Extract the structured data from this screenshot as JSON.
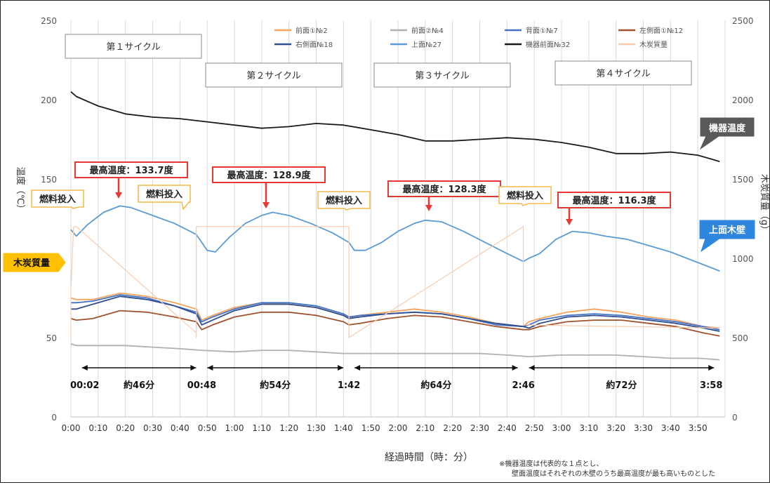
{
  "chart_data": {
    "type": "line",
    "xlabel": "経過時間（時：分）",
    "ylabel_left": "温度（℃）",
    "ylabel_right": "木炭質量（g）",
    "ylim_left": [
      0,
      250
    ],
    "ylim_right": [
      0,
      2500
    ],
    "y_ticks_left": [
      "0",
      "50",
      "100",
      "150",
      "200",
      "250"
    ],
    "y_ticks_right": [
      "0",
      "500",
      "1000",
      "1500",
      "2000",
      "2500"
    ],
    "x_range_min": [
      0,
      240
    ],
    "x_ticks": [
      "0:00",
      "0:10",
      "0:20",
      "0:30",
      "0:40",
      "0:50",
      "1:00",
      "1:10",
      "1:20",
      "1:30",
      "1:40",
      "1:50",
      "2:00",
      "2:10",
      "2:20",
      "2:30",
      "2:40",
      "2:50",
      "3:00",
      "3:10",
      "3:20",
      "3:30",
      "3:40",
      "3:50"
    ],
    "grid": "vertical-only",
    "legend_position": "top-right",
    "legend": [
      "前面①№2",
      "前面②№4",
      "背面①№7",
      "左側面①№12",
      "右側面№18",
      "上面№27",
      "機器前面№32",
      "木炭質量"
    ],
    "series": [
      {
        "name": "前面①№2",
        "color": "#f4a460",
        "axis": "left",
        "x": [
          0,
          2,
          8,
          18,
          28,
          38,
          46,
          48,
          52,
          60,
          70,
          80,
          90,
          100,
          102,
          106,
          116,
          126,
          136,
          146,
          156,
          166,
          168,
          172,
          182,
          192,
          202,
          212,
          222,
          232,
          238
        ],
        "y": [
          75,
          74,
          74,
          78,
          76,
          72,
          68,
          61,
          64,
          69,
          72,
          71,
          69,
          64,
          62,
          64,
          66,
          68,
          66,
          63,
          59,
          57,
          60,
          62,
          66,
          68,
          66,
          63,
          61,
          57,
          56
        ]
      },
      {
        "name": "前面②№4",
        "color": "#b0b0b0",
        "axis": "left",
        "x": [
          0,
          2,
          10,
          20,
          30,
          40,
          48,
          60,
          70,
          80,
          90,
          100,
          110,
          120,
          130,
          140,
          150,
          160,
          168,
          180,
          190,
          200,
          210,
          220,
          230,
          238
        ],
        "y": [
          46,
          45,
          45,
          45,
          44,
          43,
          42,
          41,
          42,
          42,
          41,
          40,
          40,
          40,
          40,
          40,
          40,
          39,
          38,
          39,
          39,
          39,
          38,
          37,
          37,
          36
        ]
      },
      {
        "name": "背面①№7",
        "color": "#4472c4",
        "axis": "left",
        "x": [
          0,
          2,
          8,
          18,
          28,
          38,
          46,
          48,
          52,
          60,
          70,
          80,
          90,
          100,
          102,
          106,
          116,
          126,
          136,
          146,
          156,
          166,
          168,
          172,
          182,
          192,
          202,
          212,
          222,
          232,
          238
        ],
        "y": [
          72,
          72,
          73,
          77,
          75,
          70,
          66,
          60,
          63,
          68,
          72,
          72,
          70,
          65,
          63,
          64,
          65,
          66,
          65,
          62,
          58,
          57,
          58,
          61,
          64,
          65,
          64,
          62,
          60,
          57,
          55
        ]
      },
      {
        "name": "左側面①№12",
        "color": "#a0522d",
        "axis": "left",
        "x": [
          0,
          2,
          8,
          18,
          28,
          38,
          46,
          48,
          52,
          60,
          70,
          80,
          90,
          100,
          102,
          106,
          116,
          126,
          136,
          146,
          156,
          166,
          168,
          172,
          182,
          192,
          202,
          212,
          222,
          232,
          238
        ],
        "y": [
          62,
          61,
          62,
          67,
          66,
          63,
          60,
          55,
          58,
          63,
          66,
          66,
          64,
          60,
          58,
          59,
          62,
          64,
          63,
          60,
          57,
          55,
          55,
          57,
          60,
          61,
          61,
          59,
          57,
          53,
          51
        ]
      },
      {
        "name": "右側面№18",
        "color": "#2f4f8f",
        "axis": "left",
        "x": [
          0,
          2,
          8,
          18,
          28,
          38,
          46,
          48,
          52,
          60,
          70,
          80,
          90,
          100,
          102,
          106,
          116,
          126,
          136,
          146,
          156,
          166,
          168,
          172,
          182,
          192,
          202,
          212,
          222,
          232,
          238
        ],
        "y": [
          68,
          68,
          71,
          76,
          74,
          70,
          65,
          58,
          61,
          67,
          71,
          71,
          69,
          64,
          62,
          63,
          65,
          66,
          65,
          62,
          59,
          57,
          56,
          59,
          63,
          64,
          63,
          61,
          59,
          56,
          54
        ]
      },
      {
        "name": "上面№27",
        "color": "#5b9bd5",
        "axis": "left",
        "x": [
          0,
          2,
          6,
          12,
          18,
          22,
          30,
          38,
          46,
          48,
          50,
          53,
          58,
          64,
          70,
          74,
          80,
          88,
          96,
          102,
          104,
          108,
          114,
          120,
          126,
          130,
          136,
          144,
          152,
          160,
          166,
          168,
          172,
          178,
          184,
          190,
          196,
          204,
          212,
          220,
          226,
          232,
          238
        ],
        "y": [
          118,
          114,
          121,
          129,
          133,
          132,
          127,
          122,
          115,
          110,
          105,
          104,
          113,
          122,
          127,
          129,
          127,
          122,
          116,
          110,
          105,
          105,
          110,
          117,
          122,
          124,
          123,
          117,
          110,
          103,
          98,
          100,
          103,
          112,
          117,
          116,
          114,
          112,
          108,
          104,
          100,
          96,
          92
        ]
      },
      {
        "name": "機器前面№32",
        "color": "#1a1a1a",
        "axis": "left",
        "x": [
          0,
          2,
          10,
          20,
          30,
          40,
          50,
          60,
          70,
          80,
          90,
          100,
          110,
          120,
          130,
          140,
          150,
          160,
          170,
          180,
          190,
          200,
          210,
          220,
          230,
          238
        ],
        "y": [
          205,
          202,
          196,
          191,
          189,
          188,
          186,
          184,
          182,
          183,
          185,
          184,
          181,
          178,
          174,
          174,
          175,
          176,
          175,
          173,
          170,
          166,
          166,
          167,
          165,
          161
        ]
      },
      {
        "name": "木炭質量",
        "color": "#f8cbad",
        "axis": "right",
        "x": [
          0,
          0,
          1,
          2,
          46,
          46,
          46,
          102,
          102,
          102,
          166,
          166,
          166,
          238
        ],
        "y": [
          500,
          800,
          1200,
          1200,
          530,
          500,
          1200,
          1200,
          530,
          500,
          1200,
          1200,
          580,
          560
        ]
      }
    ],
    "cycles": [
      {
        "label": "第１サイクル"
      },
      {
        "label": "第２サイクル"
      },
      {
        "label": "第３サイクル"
      },
      {
        "label": "第４サイクル"
      }
    ],
    "max_temp_labels": [
      "最高温度：133.7度",
      "最高温度：128.9度",
      "最高温度：128.3度",
      "最高温度：116.3度"
    ],
    "fuel_label": "燃料投入",
    "durations": [
      "約46分",
      "約54分",
      "約64分",
      "約72分"
    ],
    "time_marks": [
      "00:02",
      "00:48",
      "1:42",
      "2:46",
      "3:58"
    ],
    "side_labels": {
      "device": "機器温度",
      "upper_wall": "上面木壁",
      "charcoal": "木炭質量"
    },
    "footnote": [
      "※機器温度は代表的な１点とし、",
      "壁面温度はそれぞれの木壁のうち最高温度が最も高いものとした"
    ]
  }
}
